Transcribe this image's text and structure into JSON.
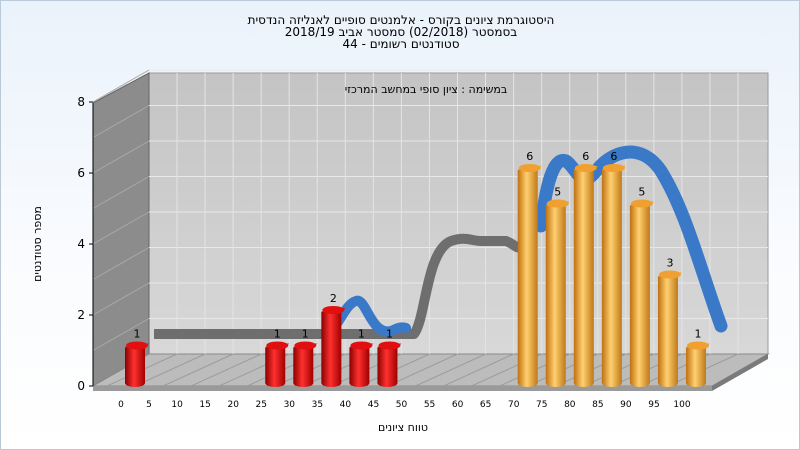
{
  "chart_data": {
    "type": "bar",
    "title_lines": [
      "היסטוגרמת ציונים בקורס - אלמנטים סופיים לאנליזה הנדסית",
      "בסמסטר  (02/2018)  סמסטר אביב 2018/19",
      "סטודנטים רשומים - 44"
    ],
    "subtitle": "במשימה : ציון סופי במחשב המרכזי",
    "xlabel": "טווח ציונים",
    "ylabel": "מספר סטודנטים",
    "ylim": [
      0,
      8
    ],
    "y_ticks": [
      "0",
      "2",
      "4",
      "6",
      "8"
    ],
    "x_ticks": [
      "0",
      "5",
      "10",
      "15",
      "20",
      "25",
      "30",
      "35",
      "40",
      "45",
      "50",
      "55",
      "60",
      "65",
      "70",
      "75",
      "80",
      "85",
      "90",
      "95",
      "100"
    ],
    "bars": [
      {
        "x": 0,
        "value": 1,
        "group": "fail"
      },
      {
        "x": 25,
        "value": 1,
        "group": "fail"
      },
      {
        "x": 30,
        "value": 1,
        "group": "fail"
      },
      {
        "x": 35,
        "value": 2,
        "group": "fail"
      },
      {
        "x": 40,
        "value": 1,
        "group": "fail"
      },
      {
        "x": 45,
        "value": 1,
        "group": "fail"
      },
      {
        "x": 70,
        "value": 6,
        "group": "pass"
      },
      {
        "x": 75,
        "value": 5,
        "group": "pass"
      },
      {
        "x": 80,
        "value": 6,
        "group": "pass"
      },
      {
        "x": 85,
        "value": 6,
        "group": "pass"
      },
      {
        "x": 90,
        "value": 5,
        "group": "pass"
      },
      {
        "x": 95,
        "value": 3,
        "group": "pass"
      },
      {
        "x": 100,
        "value": 1,
        "group": "pass"
      }
    ],
    "grid": true,
    "colors": {
      "fail_bar": "#e01010",
      "pass_bar": "#f0a030",
      "trend_gray": "#6e6e6e",
      "trend_blue": "#3a78c8",
      "wall": "#c8c8c8",
      "side_wall": "#8a8a8a"
    }
  }
}
